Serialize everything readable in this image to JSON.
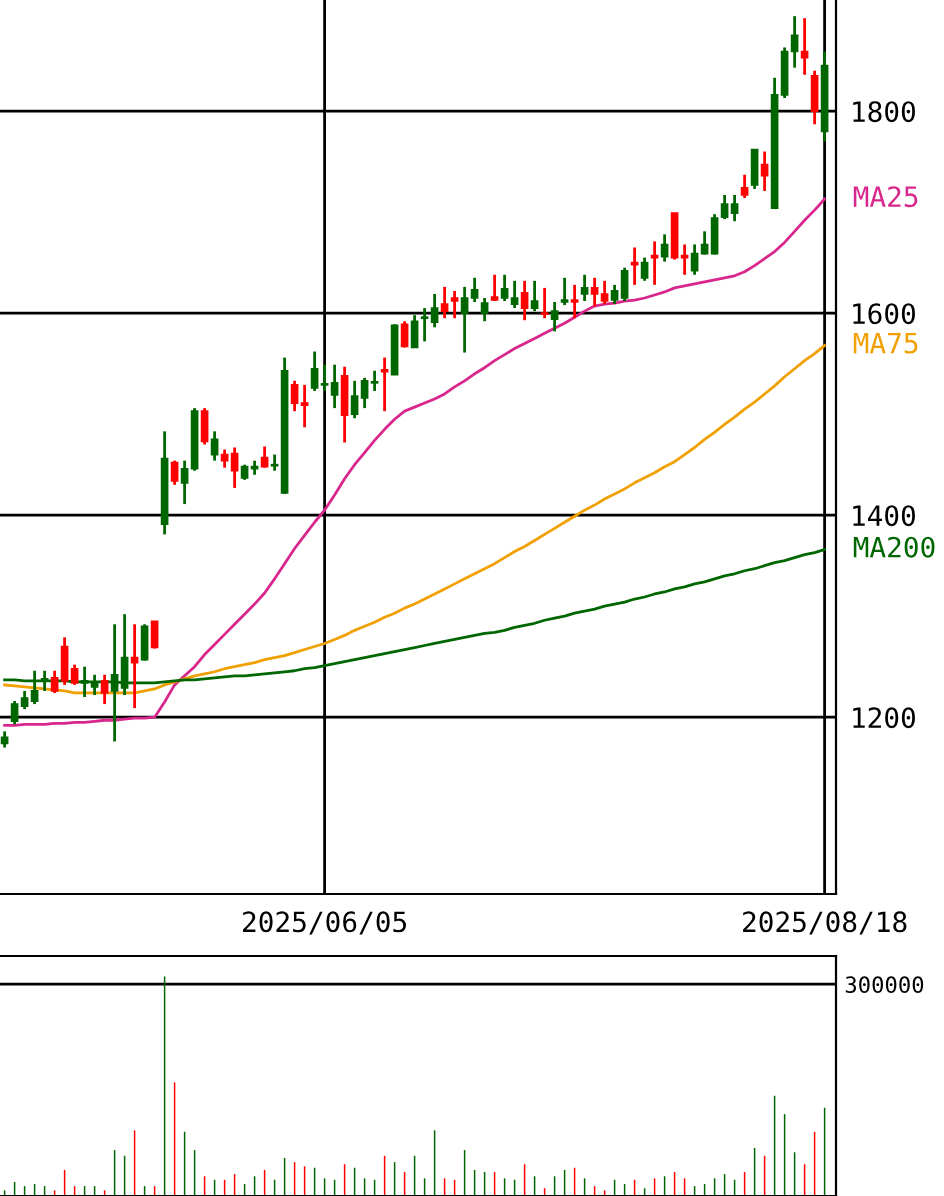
{
  "chart_data": [
    {
      "type": "candlestick",
      "categories": [
        null,
        null,
        null,
        null,
        null,
        null,
        null,
        null,
        null,
        null,
        null,
        null,
        null,
        null,
        null,
        null,
        null,
        null,
        null,
        null,
        null,
        null,
        null,
        null,
        null,
        null,
        null,
        null,
        null,
        null,
        null,
        null,
        "2025/06/05",
        null,
        null,
        null,
        null,
        null,
        null,
        null,
        null,
        null,
        null,
        null,
        null,
        null,
        null,
        null,
        null,
        null,
        null,
        null,
        null,
        null,
        null,
        null,
        null,
        null,
        null,
        null,
        null,
        null,
        null,
        null,
        null,
        null,
        null,
        null,
        null,
        null,
        null,
        null,
        null,
        null,
        null,
        null,
        null,
        null,
        null,
        null,
        null,
        null,
        "2025/08/18"
      ],
      "ohlc": [
        [
          1174,
          1186,
          1170,
          1180
        ],
        [
          1196,
          1216,
          1193,
          1213
        ],
        [
          1211,
          1226,
          1208,
          1219
        ],
        [
          1216,
          1246,
          1213,
          1226
        ],
        [
          1236,
          1246,
          1226,
          1238
        ],
        [
          1239,
          1246,
          1224,
          1226
        ],
        [
          1270,
          1279,
          1232,
          1236
        ],
        [
          1248,
          1252,
          1232,
          1234
        ],
        [
          1236,
          1250,
          1220,
          1234
        ],
        [
          1230,
          1242,
          1222,
          1234
        ],
        [
          1236,
          1242,
          1213,
          1224
        ],
        [
          1226,
          1292,
          1176,
          1242
        ],
        [
          1229,
          1302,
          1222,
          1259
        ],
        [
          1259,
          1292,
          1209,
          1254
        ],
        [
          1257,
          1292,
          1256,
          1290
        ],
        [
          1295,
          1295,
          1268,
          1269
        ],
        [
          1391,
          1483,
          1381,
          1456
        ],
        [
          1452,
          1454,
          1430,
          1434
        ],
        [
          1432,
          1454,
          1411,
          1446
        ],
        [
          1446,
          1506,
          1444,
          1503
        ],
        [
          1503,
          1506,
          1470,
          1473
        ],
        [
          1460,
          1483,
          1454,
          1475
        ],
        [
          1460,
          1465,
          1447,
          1454
        ],
        [
          1461,
          1467,
          1427,
          1444
        ],
        [
          1437,
          1450,
          1435,
          1448
        ],
        [
          1446,
          1454,
          1440,
          1448
        ],
        [
          1457,
          1468,
          1447,
          1448
        ],
        [
          1449,
          1460,
          1444,
          1450
        ],
        [
          1422,
          1556,
          1421,
          1543
        ],
        [
          1529,
          1533,
          1503,
          1511
        ],
        [
          1511,
          1529,
          1487,
          1509
        ],
        [
          1526,
          1562,
          1523,
          1545
        ],
        [
          1530,
          1549,
          1523,
          1529
        ],
        [
          1519,
          1549,
          1506,
          1531
        ],
        [
          1538,
          1547,
          1472,
          1499
        ],
        [
          1500,
          1533,
          1496,
          1518
        ],
        [
          1516,
          1536,
          1506,
          1533
        ],
        [
          1531,
          1543,
          1523,
          1532
        ],
        [
          1544,
          1556,
          1503,
          1542
        ],
        [
          1539,
          1589,
          1539,
          1588
        ],
        [
          1589,
          1592,
          1566,
          1567
        ],
        [
          1566,
          1598,
          1566,
          1592
        ],
        [
          1596,
          1605,
          1572,
          1595
        ],
        [
          1591,
          1619,
          1586,
          1605
        ],
        [
          1609,
          1626,
          1595,
          1602
        ],
        [
          1615,
          1622,
          1595,
          1612
        ],
        [
          1600,
          1626,
          1561,
          1615
        ],
        [
          1615,
          1635,
          1611,
          1623
        ],
        [
          1600,
          1615,
          1592,
          1610
        ],
        [
          1616,
          1638,
          1612,
          1613
        ],
        [
          1615,
          1638,
          1612,
          1624
        ],
        [
          1609,
          1632,
          1605,
          1615
        ],
        [
          1620,
          1632,
          1593,
          1605
        ],
        [
          1605,
          1632,
          1602,
          1612
        ],
        [
          1600,
          1625,
          1595,
          1599
        ],
        [
          1594,
          1611,
          1582,
          1602
        ],
        [
          1611,
          1635,
          1608,
          1613
        ],
        [
          1613,
          1628,
          1595,
          1611
        ],
        [
          1619,
          1638,
          1612,
          1625
        ],
        [
          1625,
          1635,
          1607,
          1619
        ],
        [
          1619,
          1632,
          1609,
          1612
        ],
        [
          1613,
          1628,
          1609,
          1622
        ],
        [
          1615,
          1645,
          1612,
          1642
        ],
        [
          1650,
          1665,
          1628,
          1648
        ],
        [
          1635,
          1655,
          1632,
          1650
        ],
        [
          1657,
          1671,
          1628,
          1655
        ],
        [
          1656,
          1678,
          1651,
          1668
        ],
        [
          1699,
          1699,
          1653,
          1655
        ],
        [
          1657,
          1668,
          1638,
          1655
        ],
        [
          1642,
          1668,
          1638,
          1659
        ],
        [
          1659,
          1681,
          1658,
          1668
        ],
        [
          1659,
          1698,
          1658,
          1694
        ],
        [
          1695,
          1717,
          1693,
          1708
        ],
        [
          1699,
          1717,
          1691,
          1708
        ],
        [
          1724,
          1737,
          1714,
          1717
        ],
        [
          1727,
          1762,
          1723,
          1762
        ],
        [
          1747,
          1760,
          1721,
          1736
        ],
        [
          1704,
          1833,
          1703,
          1816
        ],
        [
          1816,
          1863,
          1813,
          1859
        ],
        [
          1859,
          1894,
          1843,
          1875
        ],
        [
          1859,
          1892,
          1836,
          1853
        ],
        [
          1835,
          1840,
          1787,
          1800
        ],
        [
          1780,
          1859,
          1770,
          1845
        ]
      ],
      "colors": [
        "#006600",
        "#006600",
        "#006600",
        "#006600",
        "#006600",
        "#ff0000",
        "#ff0000",
        "#ff0000",
        "#006600",
        "#006600",
        "#ff0000",
        "#006600",
        "#006600",
        "#ff0000",
        "#006600",
        "#ff0000",
        "#006600",
        "#ff0000",
        "#006600",
        "#006600",
        "#ff0000",
        "#006600",
        "#ff0000",
        "#ff0000",
        "#006600",
        "#006600",
        "#ff0000",
        "#006600",
        "#006600",
        "#ff0000",
        "#ff0000",
        "#006600",
        "#006600",
        "#006600",
        "#ff0000",
        "#006600",
        "#006600",
        "#006600",
        "#ff0000",
        "#006600",
        "#ff0000",
        "#006600",
        "#006600",
        "#006600",
        "#ff0000",
        "#ff0000",
        "#006600",
        "#006600",
        "#006600",
        "#ff0000",
        "#006600",
        "#006600",
        "#ff0000",
        "#006600",
        "#ff0000",
        "#006600",
        "#006600",
        "#ff0000",
        "#006600",
        "#ff0000",
        "#ff0000",
        "#006600",
        "#006600",
        "#ff0000",
        "#006600",
        "#ff0000",
        "#006600",
        "#ff0000",
        "#ff0000",
        "#006600",
        "#006600",
        "#006600",
        "#006600",
        "#006600",
        "#ff0000",
        "#006600",
        "#ff0000",
        "#006600",
        "#006600",
        "#006600",
        "#ff0000",
        "#ff0000",
        "#006600"
      ],
      "series": [
        {
          "type": "line",
          "name": "MA25",
          "color": "#d9268c",
          "values": [
            1192,
            1192,
            1193,
            1193,
            1193,
            1194,
            1194,
            1195,
            1195,
            1196,
            1197,
            1197,
            1198,
            1199,
            1199,
            1200,
            1215,
            1232,
            1241,
            1250,
            1262,
            1272,
            1282,
            1292,
            1302,
            1312,
            1323,
            1337,
            1352,
            1367,
            1380,
            1393,
            1405,
            1420,
            1436,
            1450,
            1462,
            1474,
            1485,
            1495,
            1503,
            1507,
            1511,
            1515,
            1520,
            1527,
            1533,
            1540,
            1546,
            1553,
            1559,
            1565,
            1570,
            1575,
            1580,
            1585,
            1590,
            1596,
            1602,
            1607,
            1609,
            1610,
            1612,
            1613,
            1615,
            1618,
            1621,
            1625,
            1627,
            1629,
            1631,
            1633,
            1635,
            1637,
            1641,
            1647,
            1654,
            1661,
            1670,
            1681,
            1692,
            1702,
            1713
          ]
        },
        {
          "type": "line",
          "name": "MA75",
          "color": "#f0a000",
          "values": [
            1232,
            1231,
            1230,
            1229,
            1228,
            1227,
            1226,
            1224,
            1224,
            1224,
            1224,
            1224,
            1224,
            1224,
            1226,
            1228,
            1232,
            1235,
            1238,
            1241,
            1243,
            1245,
            1248,
            1250,
            1252,
            1254,
            1257,
            1259,
            1261,
            1264,
            1267,
            1270,
            1273,
            1277,
            1281,
            1286,
            1290,
            1294,
            1299,
            1303,
            1308,
            1312,
            1317,
            1322,
            1327,
            1332,
            1337,
            1342,
            1347,
            1352,
            1358,
            1364,
            1369,
            1375,
            1381,
            1387,
            1393,
            1399,
            1405,
            1410,
            1416,
            1421,
            1426,
            1432,
            1437,
            1442,
            1448,
            1453,
            1460,
            1467,
            1475,
            1482,
            1490,
            1497,
            1505,
            1512,
            1520,
            1528,
            1537,
            1545,
            1553,
            1560,
            1568
          ]
        },
        {
          "type": "line",
          "name": "MA200",
          "color": "#006600",
          "values": [
            1237,
            1237,
            1236,
            1236,
            1236,
            1236,
            1236,
            1235,
            1235,
            1235,
            1235,
            1235,
            1234,
            1234,
            1234,
            1234,
            1235,
            1236,
            1237,
            1237,
            1238,
            1239,
            1240,
            1241,
            1241,
            1242,
            1243,
            1244,
            1245,
            1246,
            1248,
            1249,
            1251,
            1253,
            1255,
            1257,
            1259,
            1261,
            1263,
            1265,
            1267,
            1269,
            1271,
            1273,
            1275,
            1277,
            1279,
            1281,
            1283,
            1284,
            1286,
            1289,
            1291,
            1293,
            1296,
            1298,
            1300,
            1303,
            1305,
            1307,
            1310,
            1312,
            1314,
            1317,
            1319,
            1322,
            1324,
            1327,
            1329,
            1332,
            1334,
            1337,
            1340,
            1342,
            1345,
            1347,
            1350,
            1353,
            1355,
            1358,
            1361,
            1363,
            1366
          ]
        }
      ],
      "ylim": [
        1025,
        1910
      ],
      "yticks": [
        1200,
        1400,
        1600,
        1800
      ],
      "grid": true
    },
    {
      "type": "bar",
      "categories": [
        null,
        null,
        null,
        null,
        null,
        null,
        null,
        null,
        null,
        null,
        null,
        null,
        null,
        null,
        null,
        null,
        null,
        null,
        null,
        null,
        null,
        null,
        null,
        null,
        null,
        null,
        null,
        null,
        null,
        null,
        null,
        null,
        null,
        null,
        null,
        null,
        null,
        null,
        null,
        null,
        null,
        null,
        null,
        null,
        null,
        null,
        null,
        null,
        null,
        null,
        null,
        null,
        null,
        null,
        null,
        null,
        null,
        null,
        null,
        null,
        null,
        null,
        null,
        null,
        null,
        null,
        null,
        null,
        null,
        null,
        null,
        null,
        null,
        null,
        null,
        null,
        null,
        null,
        null,
        null,
        null,
        null,
        null
      ],
      "values": [
        8000,
        20000,
        14000,
        17000,
        14000,
        8000,
        37000,
        14000,
        14000,
        14000,
        8000,
        65000,
        57000,
        93000,
        14000,
        14000,
        311000,
        161000,
        91000,
        65000,
        28000,
        23000,
        23000,
        31000,
        17000,
        28000,
        37000,
        23000,
        54000,
        48000,
        42000,
        40000,
        25000,
        23000,
        45000,
        40000,
        25000,
        23000,
        57000,
        48000,
        34000,
        57000,
        25000,
        93000,
        25000,
        23000,
        65000,
        37000,
        34000,
        34000,
        25000,
        23000,
        45000,
        28000,
        11000,
        28000,
        37000,
        40000,
        25000,
        14000,
        8000,
        23000,
        17000,
        23000,
        11000,
        25000,
        28000,
        34000,
        25000,
        14000,
        17000,
        25000,
        31000,
        23000,
        34000,
        68000,
        57000,
        142000,
        116000,
        62000,
        45000,
        91000,
        125000
      ],
      "colors": [
        "#006600",
        "#006600",
        "#006600",
        "#006600",
        "#006600",
        "#ff0000",
        "#ff0000",
        "#ff0000",
        "#006600",
        "#006600",
        "#ff0000",
        "#006600",
        "#006600",
        "#ff0000",
        "#006600",
        "#ff0000",
        "#006600",
        "#ff0000",
        "#006600",
        "#006600",
        "#ff0000",
        "#006600",
        "#ff0000",
        "#ff0000",
        "#006600",
        "#006600",
        "#ff0000",
        "#006600",
        "#006600",
        "#ff0000",
        "#ff0000",
        "#006600",
        "#006600",
        "#006600",
        "#ff0000",
        "#006600",
        "#006600",
        "#006600",
        "#ff0000",
        "#006600",
        "#ff0000",
        "#006600",
        "#006600",
        "#006600",
        "#ff0000",
        "#ff0000",
        "#006600",
        "#006600",
        "#006600",
        "#ff0000",
        "#006600",
        "#006600",
        "#ff0000",
        "#006600",
        "#ff0000",
        "#006600",
        "#006600",
        "#ff0000",
        "#006600",
        "#ff0000",
        "#ff0000",
        "#006600",
        "#006600",
        "#ff0000",
        "#006600",
        "#ff0000",
        "#006600",
        "#ff0000",
        "#ff0000",
        "#006600",
        "#006600",
        "#006600",
        "#006600",
        "#006600",
        "#ff0000",
        "#006600",
        "#ff0000",
        "#006600",
        "#006600",
        "#006600",
        "#ff0000",
        "#ff0000",
        "#006600"
      ],
      "ylim": [
        0,
        340000
      ],
      "yticks": [
        300000
      ],
      "grid": "y",
      "tick_labels": "y"
    }
  ]
}
